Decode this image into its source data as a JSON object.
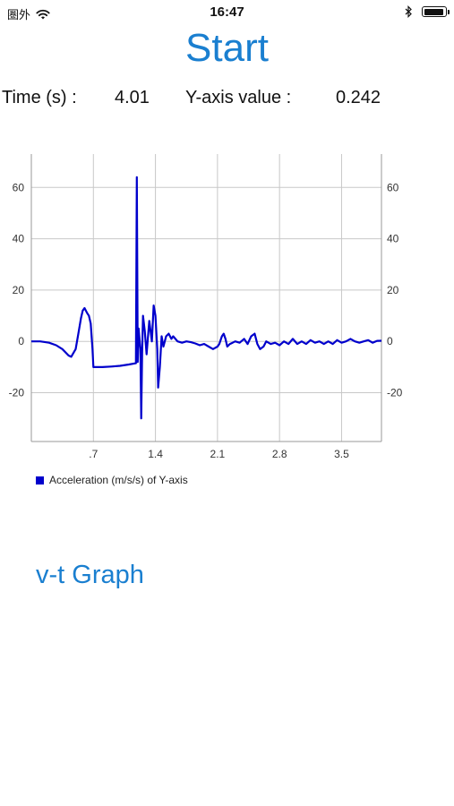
{
  "status_bar": {
    "carrier": "圏外",
    "time": "16:47",
    "wifi_icon": "wifi-icon",
    "bluetooth_icon": "bluetooth-icon",
    "battery_level": 1.0
  },
  "start_button_label": "Start",
  "readouts": {
    "time_label": "Time (s) :",
    "time_value": "4.01",
    "y_label": "Y-axis value :",
    "y_value": "0.242"
  },
  "chart_data": {
    "type": "line",
    "title": "",
    "xlabel": "",
    "ylabel": "",
    "xlim": [
      0,
      3.95
    ],
    "ylim": [
      -39,
      73
    ],
    "x_ticks": [
      0.7,
      1.4,
      2.1,
      2.8,
      3.5
    ],
    "x_tick_labels": [
      ".7",
      "1.4",
      "2.1",
      "2.8",
      "3.5"
    ],
    "y_ticks": [
      60,
      40,
      20,
      0,
      -20
    ],
    "y_tick_labels": [
      "60",
      "40",
      "20",
      "0",
      "-20"
    ],
    "grid": true,
    "legend_position": "bottom-left",
    "series": [
      {
        "name": "Acceleration (m/s/s) of Y-axis",
        "color": "#0000cc",
        "points": [
          [
            0.0,
            0
          ],
          [
            0.1,
            0
          ],
          [
            0.2,
            -0.5
          ],
          [
            0.28,
            -1.5
          ],
          [
            0.35,
            -3
          ],
          [
            0.42,
            -5.5
          ],
          [
            0.45,
            -6
          ],
          [
            0.5,
            -3
          ],
          [
            0.53,
            3
          ],
          [
            0.56,
            9
          ],
          [
            0.58,
            12
          ],
          [
            0.6,
            13
          ],
          [
            0.63,
            11
          ],
          [
            0.65,
            10
          ],
          [
            0.67,
            7
          ],
          [
            0.69,
            -3
          ],
          [
            0.7,
            -10
          ],
          [
            0.8,
            -10
          ],
          [
            0.9,
            -9.8
          ],
          [
            1.0,
            -9.5
          ],
          [
            1.1,
            -9
          ],
          [
            1.18,
            -8.5
          ],
          [
            1.19,
            64
          ],
          [
            1.2,
            -8
          ],
          [
            1.21,
            5
          ],
          [
            1.23,
            -3
          ],
          [
            1.24,
            -30
          ],
          [
            1.25,
            -5
          ],
          [
            1.26,
            10
          ],
          [
            1.28,
            4
          ],
          [
            1.3,
            -5
          ],
          [
            1.33,
            8
          ],
          [
            1.36,
            0
          ],
          [
            1.38,
            14
          ],
          [
            1.4,
            10
          ],
          [
            1.42,
            -3
          ],
          [
            1.43,
            -18
          ],
          [
            1.45,
            -10
          ],
          [
            1.47,
            2
          ],
          [
            1.49,
            -2
          ],
          [
            1.52,
            2
          ],
          [
            1.55,
            3
          ],
          [
            1.58,
            1
          ],
          [
            1.6,
            2
          ],
          [
            1.65,
            0
          ],
          [
            1.7,
            -0.5
          ],
          [
            1.75,
            0
          ],
          [
            1.8,
            -0.3
          ],
          [
            1.85,
            -0.8
          ],
          [
            1.9,
            -1.5
          ],
          [
            1.95,
            -1
          ],
          [
            2.0,
            -2
          ],
          [
            2.05,
            -3
          ],
          [
            2.1,
            -2
          ],
          [
            2.12,
            -1
          ],
          [
            2.15,
            2
          ],
          [
            2.17,
            3
          ],
          [
            2.19,
            1
          ],
          [
            2.21,
            -2
          ],
          [
            2.24,
            -1
          ],
          [
            2.27,
            -0.5
          ],
          [
            2.3,
            0
          ],
          [
            2.35,
            -0.5
          ],
          [
            2.4,
            1
          ],
          [
            2.44,
            -1
          ],
          [
            2.48,
            2
          ],
          [
            2.52,
            3
          ],
          [
            2.55,
            -1
          ],
          [
            2.58,
            -3
          ],
          [
            2.62,
            -2
          ],
          [
            2.65,
            0
          ],
          [
            2.7,
            -1
          ],
          [
            2.75,
            -0.5
          ],
          [
            2.8,
            -1.5
          ],
          [
            2.85,
            0
          ],
          [
            2.9,
            -1
          ],
          [
            2.95,
            1
          ],
          [
            3.0,
            -1
          ],
          [
            3.05,
            0
          ],
          [
            3.1,
            -1
          ],
          [
            3.15,
            0.5
          ],
          [
            3.2,
            -0.5
          ],
          [
            3.25,
            0
          ],
          [
            3.3,
            -1
          ],
          [
            3.35,
            0
          ],
          [
            3.4,
            -1
          ],
          [
            3.45,
            0.5
          ],
          [
            3.5,
            -0.5
          ],
          [
            3.55,
            0
          ],
          [
            3.6,
            1
          ],
          [
            3.65,
            0
          ],
          [
            3.7,
            -0.5
          ],
          [
            3.75,
            0
          ],
          [
            3.8,
            0.5
          ],
          [
            3.85,
            -0.5
          ],
          [
            3.9,
            0.2
          ],
          [
            3.95,
            0.24
          ]
        ]
      }
    ]
  },
  "vt_graph_label": "v-t Graph"
}
